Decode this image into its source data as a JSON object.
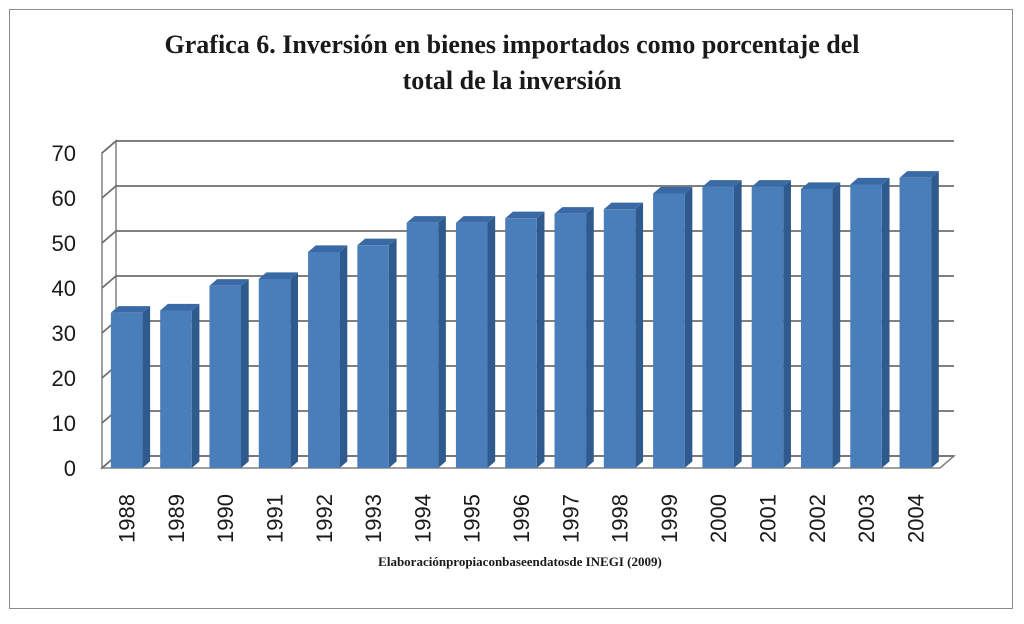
{
  "chart_data": {
    "type": "bar",
    "title_lines": [
      "Grafica 6. Inversión en bienes importados como porcentaje del",
      "total de la inversión"
    ],
    "categories": [
      "1988",
      "1989",
      "1990",
      "1991",
      "1992",
      "1993",
      "1994",
      "1995",
      "1996",
      "1997",
      "1998",
      "1999",
      "2000",
      "2001",
      "2002",
      "2003",
      "2004"
    ],
    "values": [
      34.5,
      35,
      40.5,
      42,
      48,
      49.5,
      54.5,
      54.5,
      55.5,
      56.5,
      57.5,
      61,
      62.5,
      62.5,
      62,
      63,
      64.5
    ],
    "yticks": [
      "0",
      "10",
      "20",
      "30",
      "40",
      "50",
      "60",
      "70"
    ],
    "ylim": [
      0,
      70
    ],
    "grid": true,
    "legend": "none",
    "bar_color": "#4a7ebb",
    "bar_side_color": "#2f5a8e",
    "bar_top_color": "#3a6aa5",
    "source_note": "Elaboraciónpropiaconbaseendatosde INEGI (2009)"
  }
}
